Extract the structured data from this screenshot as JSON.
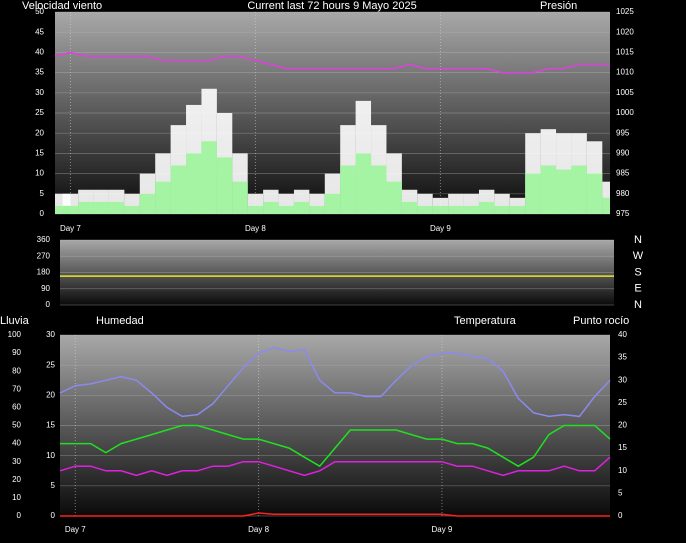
{
  "chart_data": [
    {
      "type": "bar",
      "title": "Current last 72 hours 9 Mayo 2025",
      "y_label": "Velocidad viento",
      "x": [
        0,
        2,
        4,
        6,
        8,
        10,
        12,
        14,
        16,
        18,
        20,
        22,
        24,
        26,
        28,
        30,
        32,
        34,
        36,
        38,
        40,
        42,
        44,
        46,
        48,
        50,
        52,
        54,
        56,
        58,
        60,
        62,
        64,
        66,
        68,
        70,
        72
      ],
      "xlim": [
        0,
        72
      ],
      "xticks": [
        {
          "value": 2,
          "label": "Day 7"
        },
        {
          "value": 26,
          "label": "Day 8"
        },
        {
          "value": 50,
          "label": "Day 9"
        }
      ],
      "ylim": [
        0,
        50
      ],
      "yticks": [
        0,
        5,
        10,
        15,
        20,
        25,
        30,
        35,
        40,
        45,
        50
      ],
      "y2lim": [
        975,
        1025
      ],
      "y2ticks": [
        975,
        980,
        985,
        990,
        995,
        1000,
        1005,
        1010,
        1015,
        1020,
        1025
      ],
      "grid": true,
      "series": [
        {
          "color": "#ffffff",
          "values": [
            5,
            5,
            6,
            6,
            6,
            5,
            10,
            15,
            22,
            27,
            31,
            25,
            15,
            5,
            6,
            5,
            6,
            5,
            10,
            22,
            28,
            22,
            15,
            6,
            5,
            4,
            5,
            5,
            6,
            5,
            4,
            20,
            21,
            20,
            20,
            18,
            8
          ]
        },
        {
          "color": "#9cf59c",
          "values": [
            2,
            2,
            3,
            3,
            3,
            2,
            5,
            8,
            12,
            15,
            18,
            14,
            8,
            2,
            3,
            2,
            3,
            2,
            5,
            12,
            15,
            12,
            8,
            3,
            2,
            2,
            2,
            2,
            3,
            2,
            2,
            10,
            12,
            11,
            12,
            10,
            4
          ]
        },
        {
          "name": "Presión",
          "color": "#e040e0",
          "axis": "y2",
          "values": [
            1014,
            1015,
            1014,
            1014,
            1014,
            1014,
            1014,
            1013,
            1013,
            1013,
            1013,
            1014,
            1014,
            1013,
            1012,
            1011,
            1011,
            1011,
            1011,
            1011,
            1011,
            1011,
            1011,
            1012,
            1011,
            1011,
            1011,
            1011,
            1011,
            1010,
            1010,
            1010,
            1011,
            1011,
            1012,
            1012,
            1012
          ]
        }
      ]
    },
    {
      "type": "line",
      "x": [
        0,
        2,
        4,
        6,
        8,
        10,
        12,
        14,
        16,
        18,
        20,
        22,
        24,
        26,
        28,
        30,
        32,
        34,
        36,
        38,
        40,
        42,
        44,
        46,
        48,
        50,
        52,
        54,
        56,
        58,
        60,
        62,
        64,
        66,
        68,
        70,
        72
      ],
      "xlim": [
        0,
        72
      ],
      "ylim": [
        0,
        360
      ],
      "yticks": [
        0,
        90,
        180,
        270,
        360
      ],
      "y2lim": [
        0,
        360
      ],
      "y2ticks": [
        {
          "value": 0,
          "label": "N"
        },
        {
          "value": 90,
          "label": "E"
        },
        {
          "value": 180,
          "label": "S"
        },
        {
          "value": 270,
          "label": "W"
        },
        {
          "value": 360,
          "label": "N"
        }
      ],
      "grid": true,
      "series": [
        {
          "color": "#e8e820",
          "values": [
            160,
            160,
            160,
            160,
            160,
            160,
            160,
            160,
            160,
            160,
            160,
            160,
            160,
            160,
            160,
            160,
            160,
            160,
            160,
            160,
            160,
            160,
            160,
            160,
            160,
            160,
            160,
            160,
            160,
            160,
            160,
            160,
            160,
            160,
            160,
            160,
            160
          ]
        }
      ]
    },
    {
      "type": "line",
      "x": [
        0,
        2,
        4,
        6,
        8,
        10,
        12,
        14,
        16,
        18,
        20,
        22,
        24,
        26,
        28,
        30,
        32,
        34,
        36,
        38,
        40,
        42,
        44,
        46,
        48,
        50,
        52,
        54,
        56,
        58,
        60,
        62,
        64,
        66,
        68,
        70,
        72
      ],
      "xlim": [
        0,
        72
      ],
      "xticks": [
        {
          "value": 2,
          "label": "Day 7"
        },
        {
          "value": 26,
          "label": "Day 8"
        },
        {
          "value": 50,
          "label": "Day 9"
        }
      ],
      "ylim": [
        0,
        30
      ],
      "yticks": [
        0,
        5,
        10,
        15,
        20,
        25,
        30
      ],
      "y3lim": [
        0,
        100
      ],
      "y3ticks": [
        0,
        10,
        20,
        30,
        40,
        50,
        60,
        70,
        80,
        90,
        100
      ],
      "y2lim": [
        0,
        40
      ],
      "y2ticks": [
        0,
        5,
        10,
        15,
        20,
        25,
        30,
        35,
        40
      ],
      "grid": true,
      "series": [
        {
          "name": "Lluvia",
          "color": "#ff2020",
          "values": [
            0,
            0,
            0,
            0,
            0,
            0,
            0,
            0,
            0,
            0,
            0,
            0,
            0,
            0.5,
            0.3,
            0.3,
            0.3,
            0.3,
            0.3,
            0.3,
            0.3,
            0.3,
            0.3,
            0.3,
            0.3,
            0.3,
            0,
            0,
            0,
            0,
            0,
            0,
            0,
            0,
            0,
            0,
            0
          ]
        },
        {
          "name": "Humedad",
          "color": "#8a8af0",
          "axis": "y3",
          "values": [
            68,
            72,
            73,
            75,
            77,
            75,
            68,
            60,
            55,
            56,
            62,
            72,
            82,
            90,
            93,
            91,
            92,
            75,
            68,
            68,
            66,
            66,
            75,
            83,
            88,
            90,
            90,
            88,
            87,
            80,
            65,
            57,
            55,
            56,
            55,
            66,
            75
          ]
        },
        {
          "name": "Temperatura",
          "color": "#20e020",
          "axis": "y2",
          "values": [
            16,
            16,
            16,
            14,
            16,
            17,
            18,
            19,
            20,
            20,
            19,
            18,
            17,
            17,
            16,
            15,
            13,
            11,
            15,
            19,
            19,
            19,
            19,
            18,
            17,
            17,
            16,
            16,
            15,
            13,
            11,
            13,
            18,
            20,
            20,
            20,
            17
          ]
        },
        {
          "name": "Punto rocío",
          "color": "#e020e0",
          "axis": "y2",
          "values": [
            10,
            11,
            11,
            10,
            10,
            9,
            10,
            9,
            10,
            10,
            11,
            11,
            12,
            12,
            11,
            10,
            9,
            10,
            12,
            12,
            12,
            12,
            12,
            12,
            12,
            12,
            11,
            11,
            10,
            9,
            10,
            10,
            10,
            11,
            10,
            10,
            13
          ]
        }
      ]
    }
  ]
}
